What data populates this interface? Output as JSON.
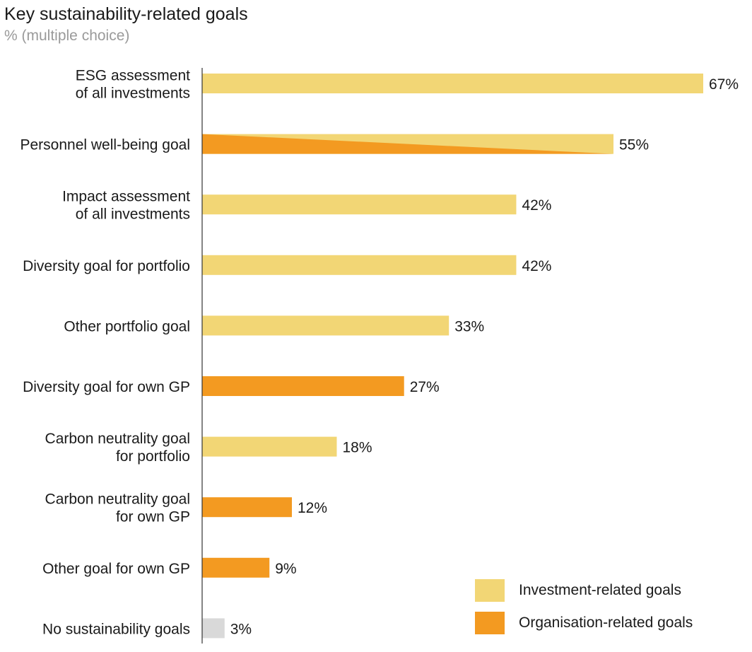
{
  "header": {
    "title": "Key sustainability-related goals",
    "subtitle": "% (multiple choice)"
  },
  "colors": {
    "investment": "#F2D675",
    "organisation": "#F39A21",
    "none": "#D9D9D9",
    "axis": "#333333"
  },
  "legend": {
    "investment_label": "Investment-related goals",
    "organisation_label": "Organisation-related goals"
  },
  "chart_data": {
    "type": "bar",
    "orientation": "horizontal",
    "title": "Key sustainability-related goals",
    "subtitle": "% (multiple choice)",
    "xlabel": "",
    "ylabel": "",
    "xlim": [
      0,
      67
    ],
    "grid": false,
    "legend_position": "bottom-right",
    "categories": [
      [
        "ESG assessment",
        "of all investments"
      ],
      [
        "Personnel well-being goal"
      ],
      [
        "Impact assessment",
        "of all investments"
      ],
      [
        "Diversity goal for portfolio"
      ],
      [
        "Other portfolio goal"
      ],
      [
        "Diversity goal for own GP"
      ],
      [
        "Carbon neutrality goal",
        "for portfolio"
      ],
      [
        "Carbon neutrality goal",
        "for own GP"
      ],
      [
        "Other goal for own GP"
      ],
      [
        "No sustainability goals"
      ]
    ],
    "values": [
      67,
      55,
      42,
      42,
      33,
      27,
      18,
      12,
      9,
      3
    ],
    "value_labels": [
      "67%",
      "55%",
      "42%",
      "42%",
      "33%",
      "27%",
      "18%",
      "12%",
      "9%",
      "3%"
    ],
    "groups": [
      "investment",
      "both",
      "investment",
      "investment",
      "investment",
      "organisation",
      "investment",
      "organisation",
      "organisation",
      "none"
    ]
  }
}
